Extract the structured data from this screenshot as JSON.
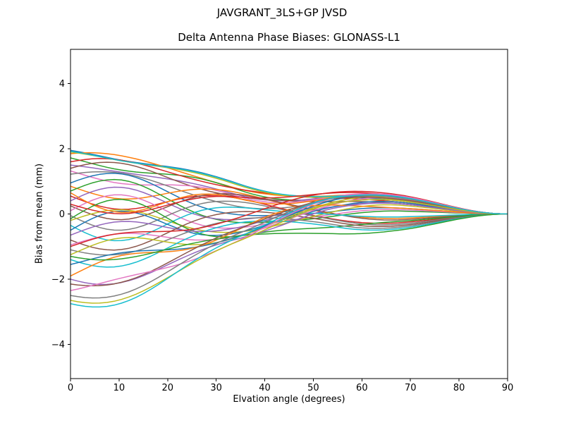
{
  "chart_data": {
    "type": "line",
    "suptitle": "JAVGRANT_3LS+GP JVSD",
    "title": "Delta Antenna Phase Biases: GLONASS-L1",
    "xlabel": "Elvation angle (degrees)",
    "ylabel": "Bias from mean (mm)",
    "xlim": [
      0,
      90
    ],
    "ylim": [
      -5.05,
      5.05
    ],
    "x_ticks": [
      0,
      10,
      20,
      30,
      40,
      50,
      60,
      70,
      80,
      90
    ],
    "x_tick_labels": [
      "0",
      "10",
      "20",
      "30",
      "40",
      "50",
      "60",
      "70",
      "80",
      "90"
    ],
    "y_ticks": [
      -4,
      -2,
      0,
      2,
      4
    ],
    "y_tick_labels": [
      "−4",
      "−2",
      "0",
      "2",
      "4"
    ],
    "grid": false,
    "legend": "none",
    "background_color": "#ffffff",
    "frame_color": "#000000",
    "line_width": 1.5,
    "n_series": 40,
    "model": {
      "description": "Each curve: y(x)=s*B0(x)+m*bump(x,b1)+b*bump(x,b2)+w*sin(2*pi*x/P)*B0(x); raised-cosine bases; all curves converge to 0 mm at x=90 deg; spread at x=0 is about -2.75..+1.95 mm, pinch near 35-45 deg, small bulge near 55-65 deg.",
      "b0_halfwidth_deg": 55,
      "b1_center_deg": 38,
      "b1_halfwidth_deg": 30,
      "b2_center_deg": 62,
      "b2_halfwidth_deg": 28,
      "wiggle_period_deg": 44,
      "x_sample_step_deg": 1.5
    },
    "series": [
      {
        "color": "#1f77b4",
        "s": 1.95,
        "m": 0.3,
        "b": 0.45,
        "w": -0.15
      },
      {
        "color": "#ff7f0e",
        "s": 1.85,
        "m": 0.25,
        "b": 0.55,
        "w": 0.1
      },
      {
        "color": "#2ca02c",
        "s": 1.72,
        "m": 0.15,
        "b": 0.5,
        "w": -0.25
      },
      {
        "color": "#d62728",
        "s": 1.6,
        "m": 0.35,
        "b": 0.4,
        "w": 0.2
      },
      {
        "color": "#9467bd",
        "s": 1.5,
        "m": 0.1,
        "b": 0.6,
        "w": -0.1
      },
      {
        "color": "#8c564b",
        "s": 1.4,
        "m": 0.2,
        "b": 0.35,
        "w": 0.3
      },
      {
        "color": "#e377c2",
        "s": 1.32,
        "m": 0.05,
        "b": 0.62,
        "w": -0.3
      },
      {
        "color": "#7f7f7f",
        "s": 1.22,
        "m": -0.1,
        "b": 0.58,
        "w": 0.15
      },
      {
        "color": "#bcbd22",
        "s": 1.9,
        "m": 0.28,
        "b": 0.48,
        "w": -0.12
      },
      {
        "color": "#17becf",
        "s": 1.92,
        "m": 0.3,
        "b": 0.5,
        "w": -0.14
      },
      {
        "color": "#1f77b4",
        "s": 0.95,
        "m": -0.2,
        "b": 0.2,
        "w": 0.4
      },
      {
        "color": "#ff7f0e",
        "s": 0.85,
        "m": 0.3,
        "b": -0.15,
        "w": -0.35
      },
      {
        "color": "#2ca02c",
        "s": 0.7,
        "m": -0.35,
        "b": 0.1,
        "w": 0.45
      },
      {
        "color": "#d62728",
        "s": 0.55,
        "m": 0.2,
        "b": -0.3,
        "w": -0.4
      },
      {
        "color": "#9467bd",
        "s": 0.4,
        "m": -0.15,
        "b": 0.35,
        "w": 0.5
      },
      {
        "color": "#8c564b",
        "s": 0.25,
        "m": 0.4,
        "b": -0.2,
        "w": -0.45
      },
      {
        "color": "#e377c2",
        "s": 0.1,
        "m": -0.3,
        "b": 0.15,
        "w": 0.55
      },
      {
        "color": "#7f7f7f",
        "s": -0.05,
        "m": 0.25,
        "b": -0.35,
        "w": -0.5
      },
      {
        "color": "#bcbd22",
        "s": -0.2,
        "m": -0.4,
        "b": 0.3,
        "w": 0.35
      },
      {
        "color": "#17becf",
        "s": -0.35,
        "m": 0.15,
        "b": -0.1,
        "w": -0.55
      },
      {
        "color": "#1f77b4",
        "s": -0.5,
        "m": -0.25,
        "b": 0.4,
        "w": 0.6
      },
      {
        "color": "#ff7f0e",
        "s": 0.65,
        "m": 0.1,
        "b": 0.55,
        "w": -0.6
      },
      {
        "color": "#2ca02c",
        "s": -0.15,
        "m": -0.45,
        "b": -0.25,
        "w": 0.65
      },
      {
        "color": "#d62728",
        "s": 0.3,
        "m": 0.35,
        "b": 0.6,
        "w": -0.3
      },
      {
        "color": "#9467bd",
        "s": -0.65,
        "m": -0.1,
        "b": 0.45,
        "w": 0.4
      },
      {
        "color": "#8c564b",
        "s": -0.8,
        "m": 0.2,
        "b": -0.4,
        "w": -0.4
      },
      {
        "color": "#e377c2",
        "s": -0.95,
        "m": -0.3,
        "b": 0.52,
        "w": 0.3
      },
      {
        "color": "#7f7f7f",
        "s": -1.1,
        "m": 0.1,
        "b": -0.45,
        "w": -0.25
      },
      {
        "color": "#bcbd22",
        "s": -1.25,
        "m": -0.2,
        "b": 0.55,
        "w": 0.45
      },
      {
        "color": "#17becf",
        "s": -1.4,
        "m": 0.05,
        "b": -0.5,
        "w": -0.35
      },
      {
        "color": "#1f77b4",
        "s": -1.55,
        "m": -0.15,
        "b": 0.6,
        "w": 0.25
      },
      {
        "color": "#ff7f0e",
        "s": -1.9,
        "m": 0.25,
        "b": 0.2,
        "w": 0.5
      },
      {
        "color": "#2ca02c",
        "s": -1.3,
        "m": -0.35,
        "b": -0.55,
        "w": -0.2
      },
      {
        "color": "#d62728",
        "s": -1.0,
        "m": 0.3,
        "b": 0.65,
        "w": 0.35
      },
      {
        "color": "#9467bd",
        "s": -2.0,
        "m": -0.25,
        "b": 0.35,
        "w": -0.3
      },
      {
        "color": "#8c564b",
        "s": -2.15,
        "m": 0.15,
        "b": 0.5,
        "w": -0.15
      },
      {
        "color": "#e377c2",
        "s": -2.35,
        "m": -0.05,
        "b": 0.62,
        "w": 0.2
      },
      {
        "color": "#7f7f7f",
        "s": -2.5,
        "m": 0.1,
        "b": 0.55,
        "w": -0.2
      },
      {
        "color": "#bcbd22",
        "s": -2.65,
        "m": -0.1,
        "b": 0.45,
        "w": -0.22
      },
      {
        "color": "#17becf",
        "s": -2.75,
        "m": 0.05,
        "b": 0.58,
        "w": -0.25
      }
    ]
  }
}
